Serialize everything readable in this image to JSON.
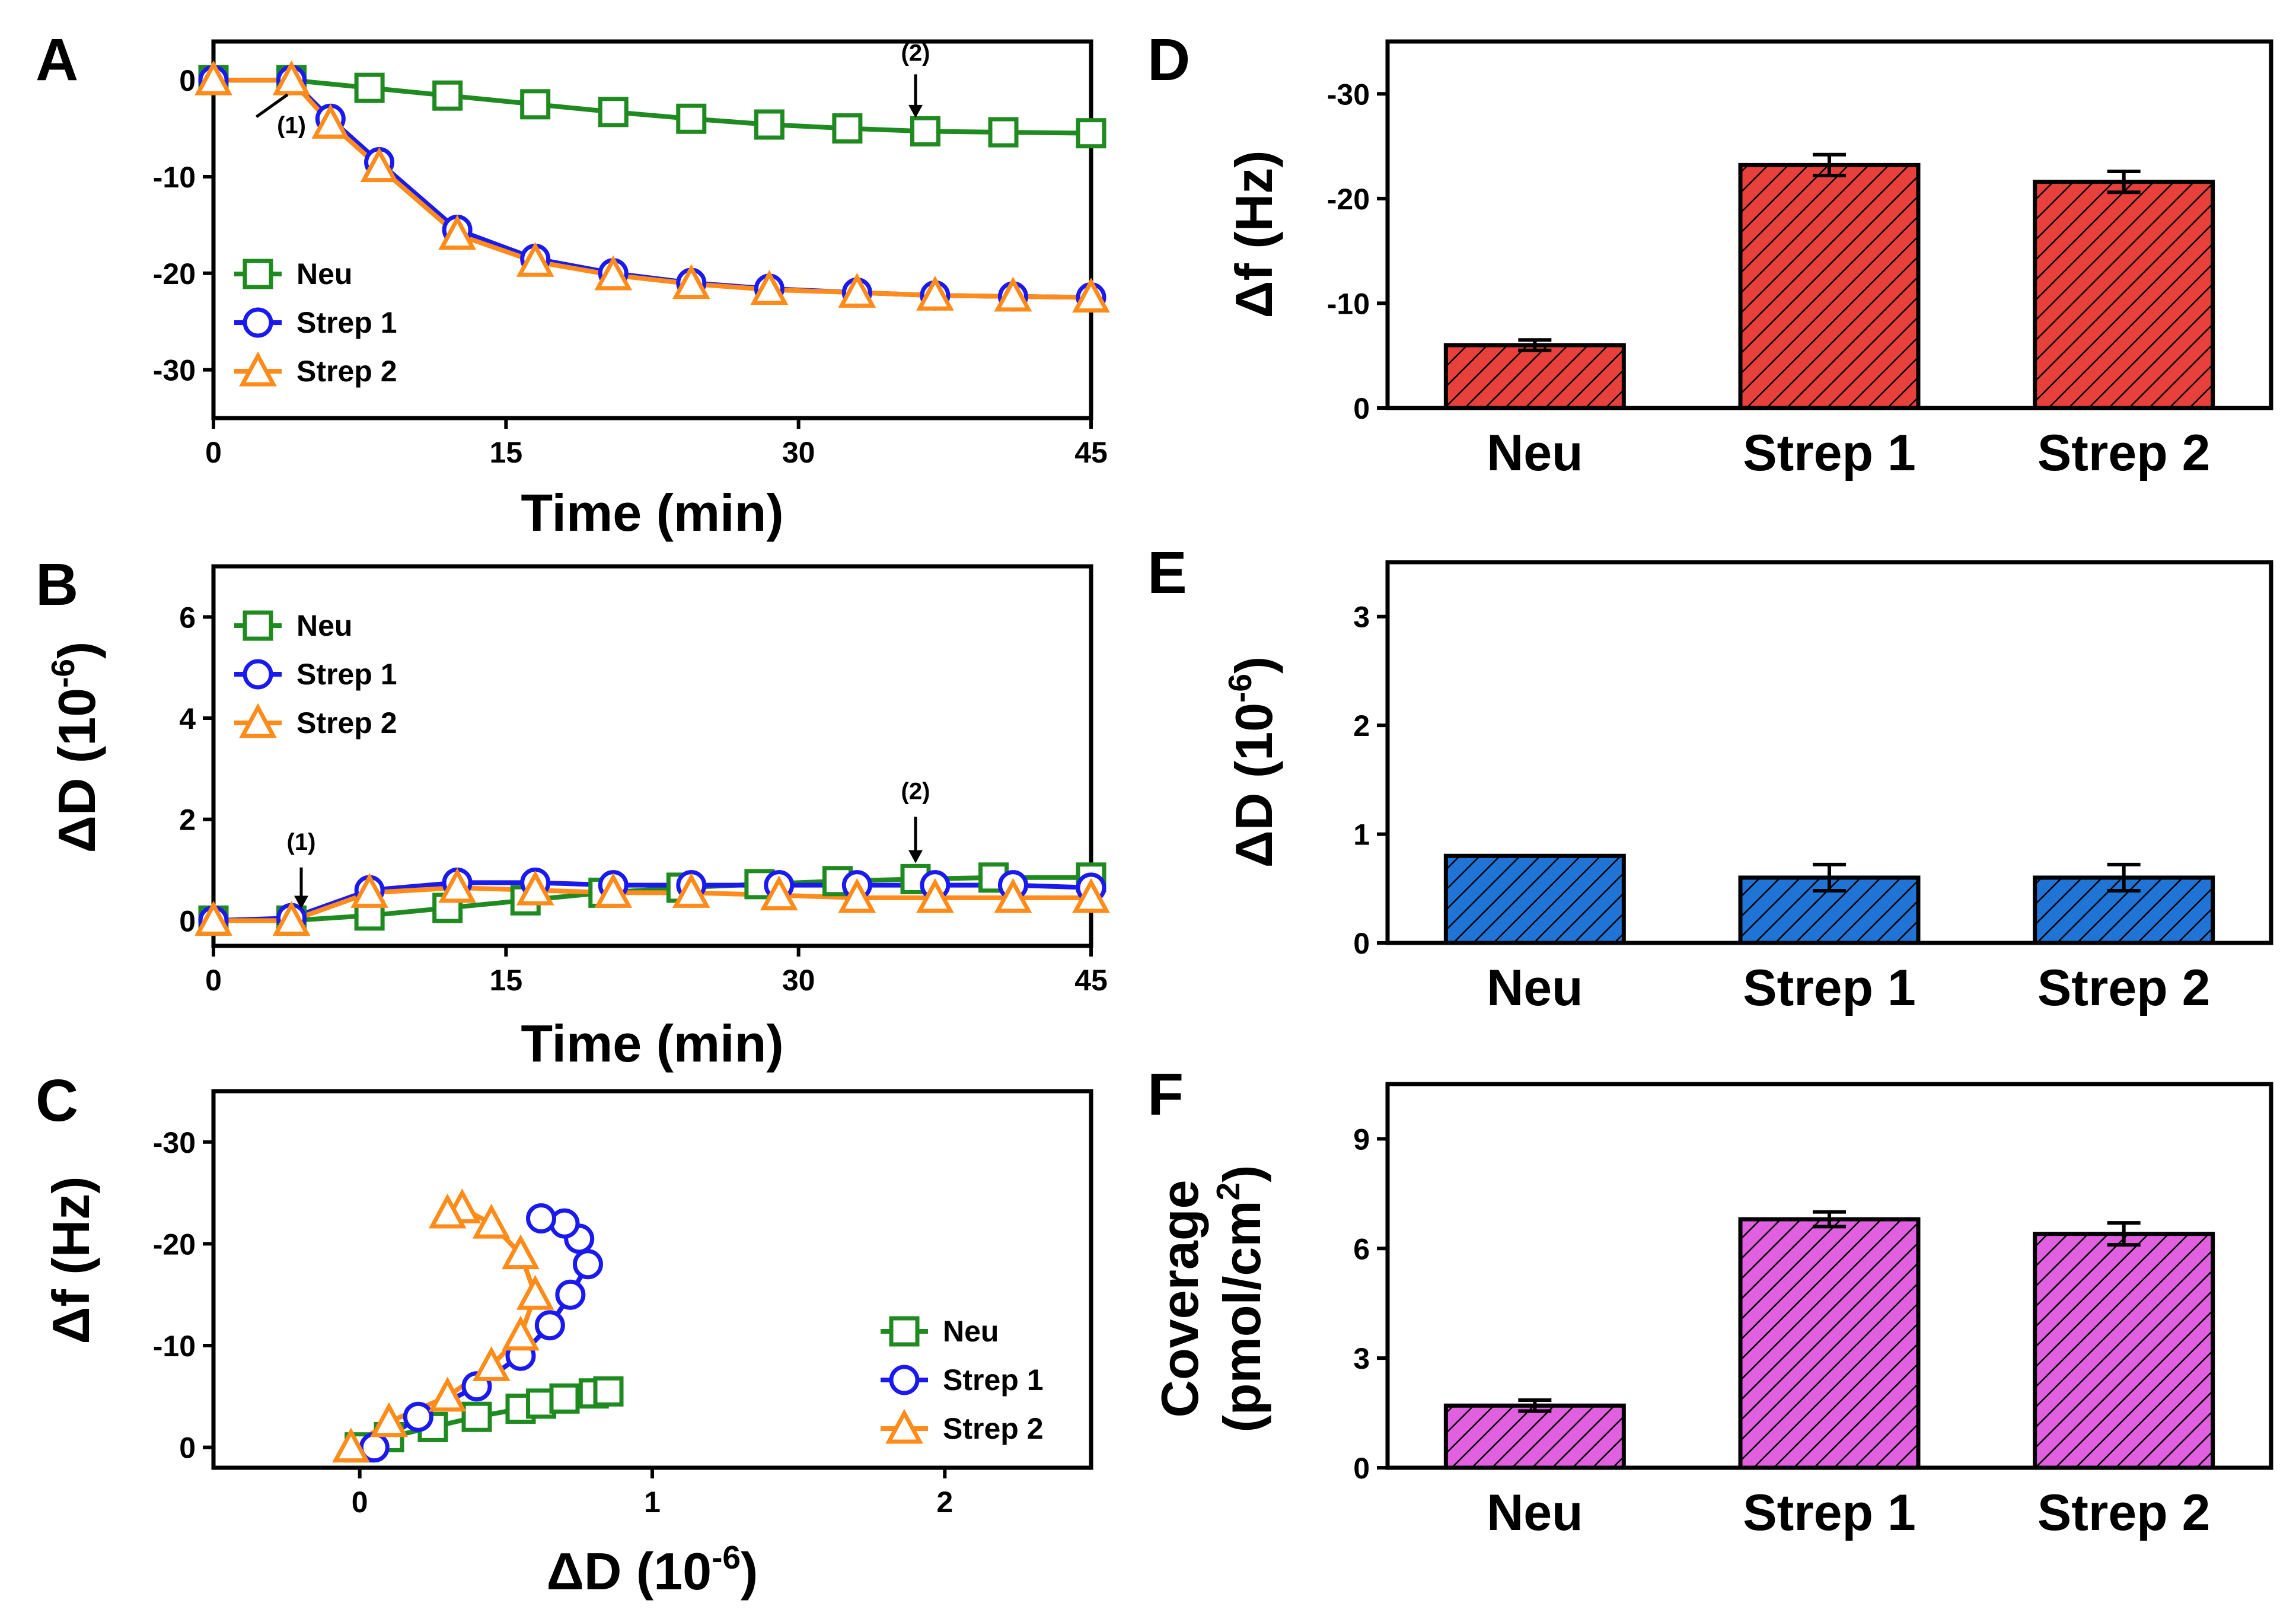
{
  "colors": {
    "neu_line": "#1f8a1f",
    "strep1_line": "#1a1aee",
    "strep2_line": "#ff8c1a",
    "bar_red": "#e8403a",
    "bar_blue": "#1f74d6",
    "bar_magenta": "#e060e0",
    "axis": "#000000"
  },
  "chart_data": [
    {
      "panel": "A",
      "type": "line",
      "xlabel": "Time (min)",
      "ylabel": "",
      "xlim": [
        0,
        45
      ],
      "ylim": [
        -35,
        4
      ],
      "xticks": [
        0,
        15,
        30,
        45
      ],
      "yticks": [
        0,
        -10,
        -20,
        -30
      ],
      "xtick_labels": [
        "0",
        "15",
        "30",
        "45"
      ],
      "ytick_labels": [
        "0",
        "-10",
        "-20",
        "-30"
      ],
      "legend": [
        "Neu",
        "Strep 1",
        "Strep 2"
      ],
      "annotations": [
        {
          "text": "(1)",
          "x": 4,
          "y": -5.5
        },
        {
          "text": "(2)",
          "x": 36,
          "y": 2
        }
      ],
      "series": [
        {
          "name": "Neu",
          "marker": "square",
          "x": [
            0,
            4,
            8,
            12,
            16.5,
            20.5,
            24.5,
            28.5,
            32.5,
            36.5,
            40.5,
            45
          ],
          "y": [
            0,
            0,
            -0.8,
            -1.6,
            -2.5,
            -3.3,
            -4,
            -4.6,
            -5,
            -5.3,
            -5.4,
            -5.5
          ]
        },
        {
          "name": "Strep 1",
          "marker": "circle",
          "x": [
            0,
            4,
            6,
            8.5,
            12.5,
            16.5,
            20.5,
            24.5,
            28.5,
            33,
            37,
            41,
            45
          ],
          "y": [
            0,
            0,
            -4,
            -8.5,
            -15.5,
            -18.5,
            -20,
            -21,
            -21.6,
            -22,
            -22.3,
            -22.4,
            -22.5
          ]
        },
        {
          "name": "Strep 2",
          "marker": "triangle",
          "x": [
            0,
            4,
            6,
            8.5,
            12.5,
            16.5,
            20.5,
            24.5,
            28.5,
            33,
            37,
            41,
            45
          ],
          "y": [
            0,
            0,
            -4.5,
            -9,
            -16,
            -18.8,
            -20.2,
            -21.1,
            -21.7,
            -22,
            -22.3,
            -22.4,
            -22.5
          ]
        }
      ]
    },
    {
      "panel": "B",
      "type": "line",
      "xlabel": "Time (min)",
      "ylabel": "ΔD (10-6)",
      "xlim": [
        0,
        45
      ],
      "ylim": [
        -0.5,
        7
      ],
      "xticks": [
        0,
        15,
        30,
        45
      ],
      "yticks": [
        0,
        2,
        4,
        6
      ],
      "xtick_labels": [
        "0",
        "15",
        "30",
        "45"
      ],
      "ytick_labels": [
        "0",
        "2",
        "4",
        "6"
      ],
      "legend": [
        "Neu",
        "Strep 1",
        "Strep 2"
      ],
      "annotations": [
        {
          "text": "(1)",
          "x": 4.5,
          "y": 1.4
        },
        {
          "text": "(2)",
          "x": 36,
          "y": 2.4
        }
      ],
      "series": [
        {
          "name": "Neu",
          "marker": "square",
          "x": [
            0,
            4,
            8,
            12,
            16,
            20,
            24,
            28,
            32,
            36,
            40,
            45
          ],
          "y": [
            0,
            0,
            0.1,
            0.25,
            0.4,
            0.55,
            0.65,
            0.72,
            0.78,
            0.82,
            0.85,
            0.85
          ]
        },
        {
          "name": "Strep 1",
          "marker": "circle",
          "x": [
            0,
            4,
            8,
            12.5,
            16.5,
            20.5,
            24.5,
            29,
            33,
            37,
            41,
            45
          ],
          "y": [
            0,
            0.05,
            0.6,
            0.75,
            0.75,
            0.7,
            0.7,
            0.7,
            0.7,
            0.7,
            0.7,
            0.65
          ]
        },
        {
          "name": "Strep 2",
          "marker": "triangle",
          "x": [
            0,
            4,
            8,
            12.5,
            16.5,
            20.5,
            24.5,
            29,
            33,
            37,
            41,
            45
          ],
          "y": [
            0,
            0,
            0.55,
            0.65,
            0.6,
            0.55,
            0.55,
            0.5,
            0.45,
            0.45,
            0.45,
            0.45
          ]
        }
      ]
    },
    {
      "panel": "C",
      "type": "scatter",
      "xlabel": "ΔD (10-6)",
      "ylabel": "Δf (Hz)",
      "xlim": [
        -0.5,
        2.5
      ],
      "ylim": [
        2,
        -35
      ],
      "xticks": [
        0,
        1,
        2
      ],
      "yticks": [
        0,
        -10,
        -20,
        -30
      ],
      "xtick_labels": [
        "0",
        "1",
        "2"
      ],
      "ytick_labels": [
        "0",
        "-10",
        "-20",
        "-30"
      ],
      "legend": [
        "Neu",
        "Strep 1",
        "Strep 2"
      ],
      "series": [
        {
          "name": "Neu",
          "marker": "square",
          "x": [
            0,
            0.1,
            0.25,
            0.4,
            0.55,
            0.62,
            0.7,
            0.8,
            0.85
          ],
          "y": [
            0,
            -1,
            -2,
            -3,
            -3.8,
            -4.3,
            -4.8,
            -5.3,
            -5.5
          ]
        },
        {
          "name": "Strep 1",
          "marker": "circle",
          "x": [
            0.05,
            0.2,
            0.4,
            0.55,
            0.65,
            0.72,
            0.78,
            0.75,
            0.7,
            0.62
          ],
          "y": [
            0,
            -3,
            -6,
            -9,
            -12,
            -15,
            -18,
            -20.5,
            -22,
            -22.5
          ]
        },
        {
          "name": "Strep 2",
          "marker": "triangle",
          "x": [
            -0.03,
            0.1,
            0.3,
            0.45,
            0.55,
            0.6,
            0.55,
            0.45,
            0.35,
            0.3
          ],
          "y": [
            0,
            -2.5,
            -5,
            -8,
            -11,
            -15,
            -19,
            -22,
            -23.5,
            -23
          ]
        }
      ]
    },
    {
      "panel": "D",
      "type": "bar",
      "categories": [
        "Neu",
        "Strep 1",
        "Strep 2"
      ],
      "values": [
        -6,
        -23.2,
        -21.6
      ],
      "errors": [
        0.5,
        1.0,
        1.0
      ],
      "ylabel": "Δf (Hz)",
      "ylim": [
        0,
        -35
      ],
      "yticks": [
        0,
        -10,
        -20,
        -30
      ],
      "ytick_labels": [
        "0",
        "-10",
        "-20",
        "-30"
      ]
    },
    {
      "panel": "E",
      "type": "bar",
      "categories": [
        "Neu",
        "Strep 1",
        "Strep 2"
      ],
      "values": [
        0.8,
        0.6,
        0.6
      ],
      "errors": [
        0.0,
        0.12,
        0.12
      ],
      "ylabel": "ΔD (10-6)",
      "ylim": [
        0,
        3.5
      ],
      "yticks": [
        0,
        1,
        2,
        3
      ],
      "ytick_labels": [
        "0",
        "1",
        "2",
        "3"
      ]
    },
    {
      "panel": "F",
      "type": "bar",
      "categories": [
        "Neu",
        "Strep 1",
        "Strep 2"
      ],
      "values": [
        1.7,
        6.8,
        6.4
      ],
      "errors": [
        0.15,
        0.2,
        0.3
      ],
      "ylabel": "Coverage (pmol/cm2)",
      "ylim": [
        0,
        10.5
      ],
      "yticks": [
        0,
        3,
        6,
        9
      ],
      "ytick_labels": [
        "0",
        "3",
        "6",
        "9"
      ]
    }
  ],
  "text": {
    "A": "A",
    "B": "B",
    "C": "C",
    "D": "D",
    "E": "E",
    "F": "F",
    "time_label": "Time (min)",
    "dd_prefix": "ΔD (10",
    "dd_exp": "-6",
    "dd_suffix": ")",
    "df_label": "Δf (Hz)",
    "coverage_label": "Coverage",
    "coverage_unit_prefix": "(pmol/cm",
    "coverage_unit_exp": "2",
    "coverage_unit_suffix": ")"
  }
}
